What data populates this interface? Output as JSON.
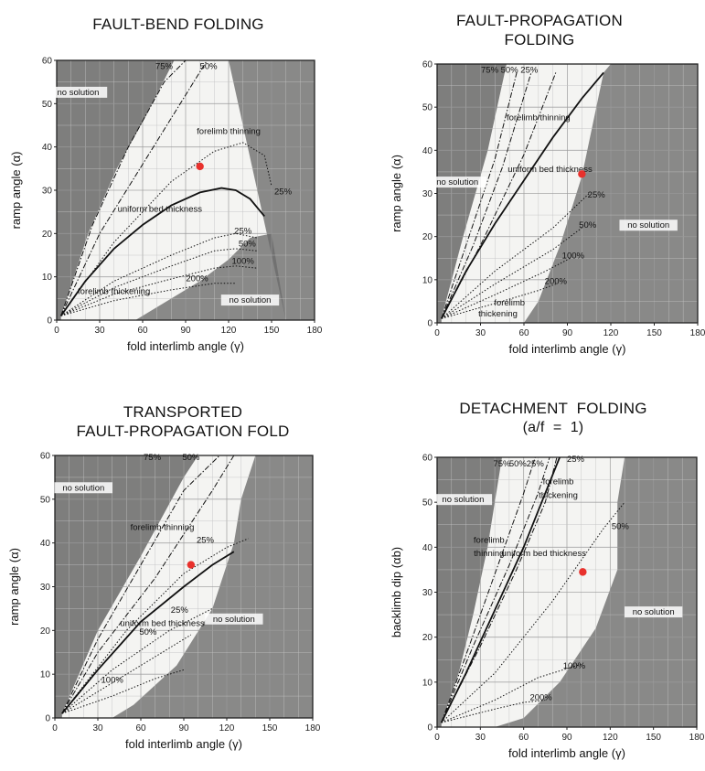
{
  "chart_data": [
    {
      "type": "line",
      "title": "FAULT-BEND FOLDING",
      "xlabel": "fold interlimb angle (γ)",
      "ylabel": "ramp angle (α)",
      "xlim": [
        0,
        180
      ],
      "ylim": [
        0,
        60
      ],
      "xticks": [
        "0",
        "30",
        "60",
        "90",
        "120",
        "150",
        "180"
      ],
      "yticks": [
        "0",
        "10",
        "20",
        "30",
        "40",
        "50",
        "60"
      ],
      "grid": true,
      "regions": [
        {
          "label": "no solution",
          "at": [
            15,
            52
          ]
        },
        {
          "label": "no solution",
          "at": [
            135,
            4
          ]
        }
      ],
      "series": [
        {
          "name": "uniform bed thickness",
          "style": "solid",
          "x": [
            3,
            20,
            40,
            60,
            80,
            100,
            115,
            125,
            135,
            145
          ],
          "y": [
            1,
            9,
            16.5,
            22,
            26.5,
            29.5,
            30.5,
            30,
            28,
            24
          ]
        },
        {
          "name": "75%",
          "style": "dashdot",
          "x": [
            3,
            25,
            50,
            75,
            90
          ],
          "y": [
            1,
            22,
            40,
            55,
            60
          ]
        },
        {
          "name": "50%",
          "style": "dashdot",
          "x": [
            3,
            30,
            60,
            90,
            105
          ],
          "y": [
            1,
            20,
            36,
            52,
            60
          ]
        },
        {
          "name": "25%",
          "style": "dotted",
          "x": [
            3,
            40,
            80,
            110,
            130,
            145,
            150
          ],
          "y": [
            1,
            18,
            32,
            39,
            41,
            38,
            31
          ]
        },
        {
          "name": "25%",
          "style": "dotted",
          "x": [
            3,
            40,
            80,
            110,
            125,
            140
          ],
          "y": [
            1,
            9,
            15,
            19,
            20,
            19
          ]
        },
        {
          "name": "50%",
          "style": "dotted",
          "x": [
            3,
            40,
            80,
            110,
            125,
            140
          ],
          "y": [
            1,
            7.5,
            12.5,
            16,
            16.5,
            16
          ]
        },
        {
          "name": "100%",
          "style": "dotted",
          "x": [
            3,
            40,
            80,
            110,
            125,
            140
          ],
          "y": [
            1,
            6,
            9.5,
            12,
            12.5,
            12
          ]
        },
        {
          "name": "200%",
          "style": "dotted",
          "x": [
            3,
            40,
            80,
            110,
            125
          ],
          "y": [
            1,
            4.5,
            7,
            8.5,
            8.5
          ]
        }
      ],
      "annotations": [
        {
          "text": "forelimb thinning",
          "at": [
            120,
            43
          ]
        },
        {
          "text": "forelimb thickening",
          "at": [
            40,
            6
          ]
        },
        {
          "text": "uniform bed thickness",
          "at": [
            72,
            25
          ]
        },
        {
          "text": "75%",
          "at": [
            75,
            58
          ]
        },
        {
          "text": "50%",
          "at": [
            106,
            58
          ]
        },
        {
          "text": "25%",
          "at": [
            158,
            29
          ]
        },
        {
          "text": "25%",
          "at": [
            130,
            20
          ]
        },
        {
          "text": "50%",
          "at": [
            133,
            17
          ]
        },
        {
          "text": "100%",
          "at": [
            130,
            13
          ]
        },
        {
          "text": "200%",
          "at": [
            98,
            9
          ]
        }
      ],
      "points": [
        {
          "x": 100,
          "y": 35.5
        }
      ]
    },
    {
      "type": "line",
      "title": "FAULT-PROPAGATION\nFOLDING",
      "xlabel": "fold interlimb angle (γ)",
      "ylabel": "ramp angle (α)",
      "xlim": [
        0,
        180
      ],
      "ylim": [
        0,
        60
      ],
      "xticks": [
        "0",
        "30",
        "60",
        "90",
        "120",
        "150",
        "180"
      ],
      "yticks": [
        "0",
        "10",
        "20",
        "30",
        "40",
        "50",
        "60"
      ],
      "grid": true,
      "regions": [
        {
          "label": "no solution",
          "at": [
            14,
            32
          ]
        },
        {
          "label": "no solution",
          "at": [
            146,
            22
          ]
        }
      ],
      "series": [
        {
          "name": "uniform bed thickness",
          "style": "solid",
          "x": [
            3,
            20,
            40,
            60,
            80,
            100,
            115
          ],
          "y": [
            1,
            12,
            23,
            33,
            43,
            52,
            58
          ]
        },
        {
          "name": "75%",
          "style": "dashdot",
          "x": [
            3,
            20,
            40,
            55
          ],
          "y": [
            1,
            18,
            38,
            58
          ]
        },
        {
          "name": "50%",
          "style": "dashdot",
          "x": [
            3,
            25,
            45,
            65
          ],
          "y": [
            1,
            18,
            36,
            58
          ]
        },
        {
          "name": "25%",
          "style": "dashdot",
          "x": [
            3,
            30,
            60,
            82
          ],
          "y": [
            1,
            18,
            39,
            58
          ]
        },
        {
          "name": "25%",
          "style": "dotted",
          "x": [
            3,
            40,
            80,
            105
          ],
          "y": [
            1,
            12,
            22,
            30
          ]
        },
        {
          "name": "50%",
          "style": "dotted",
          "x": [
            3,
            40,
            80,
            100
          ],
          "y": [
            1,
            9,
            17,
            22
          ]
        },
        {
          "name": "100%",
          "style": "dotted",
          "x": [
            3,
            40,
            75,
            92
          ],
          "y": [
            1,
            6.5,
            12,
            15
          ]
        },
        {
          "name": "200%",
          "style": "dotted",
          "x": [
            3,
            40,
            70,
            82
          ],
          "y": [
            1,
            4.5,
            7.5,
            9
          ]
        }
      ],
      "annotations": [
        {
          "text": "75% 50% 25%",
          "at": [
            50,
            58
          ]
        },
        {
          "text": "forelimb thinning",
          "at": [
            70,
            47
          ]
        },
        {
          "text": "uniform bed thickness",
          "at": [
            78,
            35
          ]
        },
        {
          "text": "25%",
          "at": [
            110,
            29
          ]
        },
        {
          "text": "50%",
          "at": [
            104,
            22
          ]
        },
        {
          "text": "100%",
          "at": [
            94,
            15
          ]
        },
        {
          "text": "200%",
          "at": [
            82,
            9
          ]
        },
        {
          "text": "forelimb",
          "at": [
            50,
            4
          ]
        },
        {
          "text": "thickening",
          "at": [
            42,
            1.5
          ]
        }
      ],
      "points": [
        {
          "x": 100,
          "y": 34.5
        }
      ]
    },
    {
      "type": "line",
      "title": "TRANSPORTED\nFAULT-PROPAGATION FOLD",
      "xlabel": "fold interlimb angle (γ)",
      "ylabel": "ramp angle (α)",
      "xlim": [
        0,
        180
      ],
      "ylim": [
        0,
        60
      ],
      "xticks": [
        "0",
        "30",
        "60",
        "90",
        "120",
        "150",
        "180"
      ],
      "yticks": [
        "0",
        "10",
        "20",
        "30",
        "40",
        "50",
        "60"
      ],
      "grid": true,
      "regions": [
        {
          "label": "no solution",
          "at": [
            20,
            52
          ]
        },
        {
          "label": "no solution",
          "at": [
            125,
            22
          ]
        }
      ],
      "series": [
        {
          "name": "uniform bed thickness",
          "style": "solid",
          "x": [
            5,
            30,
            60,
            90,
            110,
            125
          ],
          "y": [
            1,
            11,
            22,
            30,
            35,
            38
          ]
        },
        {
          "name": "75%",
          "style": "dashdot",
          "x": [
            5,
            30,
            60,
            90,
            115
          ],
          "y": [
            1,
            18,
            35,
            52,
            60
          ]
        },
        {
          "name": "50%",
          "style": "dashdot",
          "x": [
            5,
            30,
            70,
            110,
            125
          ],
          "y": [
            1,
            15,
            32,
            52,
            60
          ]
        },
        {
          "name": "25%",
          "style": "dotted",
          "x": [
            5,
            50,
            90,
            120,
            135
          ],
          "y": [
            1,
            20,
            33,
            39,
            41
          ]
        },
        {
          "name": "25%",
          "style": "dotted",
          "x": [
            5,
            40,
            80,
            110
          ],
          "y": [
            1,
            11,
            20,
            25
          ]
        },
        {
          "name": "50%",
          "style": "dotted",
          "x": [
            5,
            40,
            75,
            95
          ],
          "y": [
            1,
            8,
            15,
            19
          ]
        },
        {
          "name": "100%",
          "style": "dotted",
          "x": [
            5,
            40,
            70,
            90
          ],
          "y": [
            1,
            5,
            9,
            11
          ]
        }
      ],
      "annotations": [
        {
          "text": "75%",
          "at": [
            68,
            59
          ]
        },
        {
          "text": "50%",
          "at": [
            95,
            59
          ]
        },
        {
          "text": "forelimb thinning",
          "at": [
            75,
            43
          ]
        },
        {
          "text": "25%",
          "at": [
            105,
            40
          ]
        },
        {
          "text": "uniform bed thickness",
          "at": [
            75,
            21
          ]
        },
        {
          "text": "25%",
          "at": [
            87,
            24
          ]
        },
        {
          "text": "50%",
          "at": [
            65,
            19
          ]
        },
        {
          "text": "100%",
          "at": [
            40,
            8
          ]
        }
      ],
      "points": [
        {
          "x": 95,
          "y": 35
        }
      ]
    },
    {
      "type": "line",
      "title": "DETACHMENT  FOLDING",
      "subtitle": "(a/f  =  1)",
      "xlabel": "fold interlimb angle (γ)",
      "ylabel": "backlimb dip (αb)",
      "xlim": [
        0,
        180
      ],
      "ylim": [
        0,
        60
      ],
      "xticks": [
        "0",
        "30",
        "60",
        "90",
        "120",
        "150",
        "180"
      ],
      "yticks": [
        "0",
        "10",
        "20",
        "30",
        "40",
        "50",
        "60"
      ],
      "grid": true,
      "regions": [
        {
          "label": "no solution",
          "at": [
            18,
            50
          ]
        },
        {
          "label": "no solution",
          "at": [
            150,
            25
          ]
        }
      ],
      "series": [
        {
          "name": "uniform bed thickness",
          "style": "solid",
          "x": [
            3,
            20,
            40,
            60,
            75,
            85
          ],
          "y": [
            1,
            12,
            26,
            40,
            52,
            60
          ]
        },
        {
          "name": "75%",
          "style": "dashdot",
          "x": [
            3,
            20,
            40,
            60,
            68
          ],
          "y": [
            1,
            16,
            34,
            52,
            60
          ]
        },
        {
          "name": "50%",
          "style": "dashdot",
          "x": [
            3,
            25,
            50,
            70,
            78
          ],
          "y": [
            1,
            18,
            36,
            52,
            60
          ]
        },
        {
          "name": "25%",
          "style": "dashdot",
          "x": [
            3,
            30,
            55,
            75,
            83
          ],
          "y": [
            1,
            18,
            35,
            50,
            60
          ]
        },
        {
          "name": "50%",
          "style": "dotted",
          "x": [
            3,
            40,
            80,
            115,
            130
          ],
          "y": [
            1,
            12,
            28,
            44,
            50
          ]
        },
        {
          "name": "100%",
          "style": "dotted",
          "x": [
            3,
            40,
            70,
            100
          ],
          "y": [
            1,
            6,
            11,
            14
          ]
        },
        {
          "name": "200%",
          "style": "dotted",
          "x": [
            3,
            40,
            60,
            75
          ],
          "y": [
            1,
            4,
            5.5,
            6
          ]
        }
      ],
      "annotations": [
        {
          "text": "75%",
          "at": [
            45,
            58
          ]
        },
        {
          "text": "50%",
          "at": [
            56,
            58
          ]
        },
        {
          "text": "25%",
          "at": [
            68,
            58
          ]
        },
        {
          "text": "25%",
          "at": [
            96,
            59
          ]
        },
        {
          "text": "forelimb",
          "at": [
            84,
            54
          ]
        },
        {
          "text": "thickening",
          "at": [
            84,
            51
          ]
        },
        {
          "text": "forelimb",
          "at": [
            36,
            41
          ]
        },
        {
          "text": "thinning",
          "at": [
            36,
            38
          ]
        },
        {
          "text": "uniform bed thickness",
          "at": [
            74,
            38
          ]
        },
        {
          "text": "50%",
          "at": [
            127,
            44
          ]
        },
        {
          "text": "100%",
          "at": [
            95,
            13
          ]
        },
        {
          "text": "200%",
          "at": [
            72,
            6
          ]
        }
      ],
      "points": [
        {
          "x": 101,
          "y": 34.5
        }
      ]
    }
  ]
}
